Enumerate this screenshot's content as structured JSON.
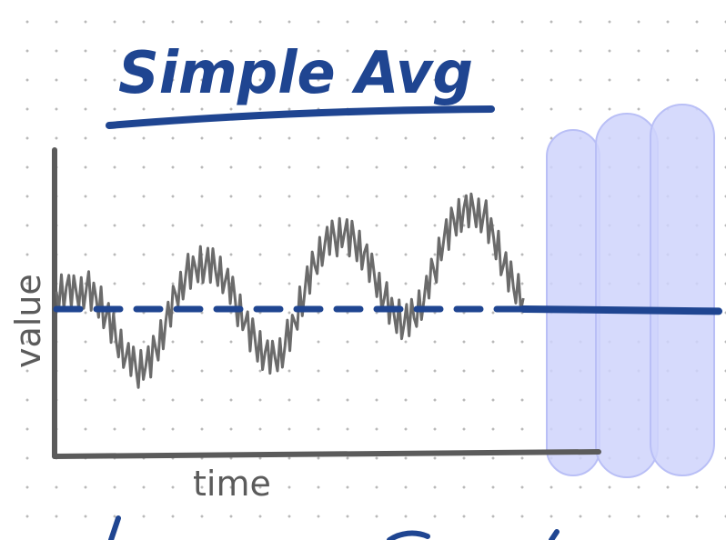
{
  "chart_data": {
    "type": "line",
    "title": "Simple Avg",
    "xlabel": "time",
    "ylabel": "value",
    "x_range": [
      0,
      100
    ],
    "y_range": [
      -5,
      5
    ],
    "series": [
      {
        "values": [
          [
            0.0,
            0.8
          ],
          [
            1.5,
            1.0
          ],
          [
            3.0,
            0.8
          ],
          [
            4.5,
            0.9
          ],
          [
            6.0,
            0.5
          ],
          [
            7.5,
            -0.3
          ],
          [
            9.0,
            -1.4
          ],
          [
            10.5,
            -2.2
          ],
          [
            12.0,
            -2.7
          ],
          [
            13.5,
            -2.6
          ],
          [
            15.0,
            -1.8
          ],
          [
            16.5,
            -0.6
          ],
          [
            18.0,
            0.7
          ],
          [
            19.5,
            1.5
          ],
          [
            21.0,
            1.9
          ],
          [
            22.5,
            2.0
          ],
          [
            24.0,
            1.8
          ],
          [
            25.5,
            1.3
          ],
          [
            27.0,
            0.4
          ],
          [
            28.5,
            -0.6
          ],
          [
            30.0,
            -1.4
          ],
          [
            31.5,
            -2.0
          ],
          [
            33.0,
            -2.2
          ],
          [
            34.5,
            -1.7
          ],
          [
            36.0,
            -0.6
          ],
          [
            37.5,
            0.8
          ],
          [
            39.0,
            2.0
          ],
          [
            40.5,
            2.9
          ],
          [
            42.0,
            3.3
          ],
          [
            43.5,
            3.5
          ],
          [
            45.0,
            3.2
          ],
          [
            46.5,
            2.6
          ],
          [
            48.0,
            1.6
          ],
          [
            49.5,
            0.5
          ],
          [
            51.0,
            -0.3
          ],
          [
            52.5,
            -0.7
          ],
          [
            54.0,
            -0.4
          ],
          [
            55.5,
            0.4
          ],
          [
            57.0,
            1.8
          ],
          [
            58.5,
            3.2
          ],
          [
            60.0,
            4.1
          ],
          [
            61.5,
            4.6
          ],
          [
            63.0,
            4.6
          ],
          [
            64.5,
            4.3
          ],
          [
            66.0,
            3.3
          ],
          [
            67.5,
            2.0
          ],
          [
            69.0,
            1.0
          ],
          [
            70.5,
            0.5
          ]
        ]
      },
      {
        "values": [
          [
            0,
            0.0
          ],
          [
            100,
            0.0
          ]
        ]
      }
    ],
    "forecast": {
      "values": [
        [
          70.5,
          0.0
        ],
        [
          100,
          -0.1
        ]
      ]
    },
    "grid": false,
    "legend": false
  },
  "colors": {
    "ink_blue": "#1f4591",
    "signal_gray": "#6b6b6b",
    "axis_gray": "#5b5b5b",
    "highlight": "#cfd3fb",
    "highlight_edge": "#b9bff6"
  }
}
